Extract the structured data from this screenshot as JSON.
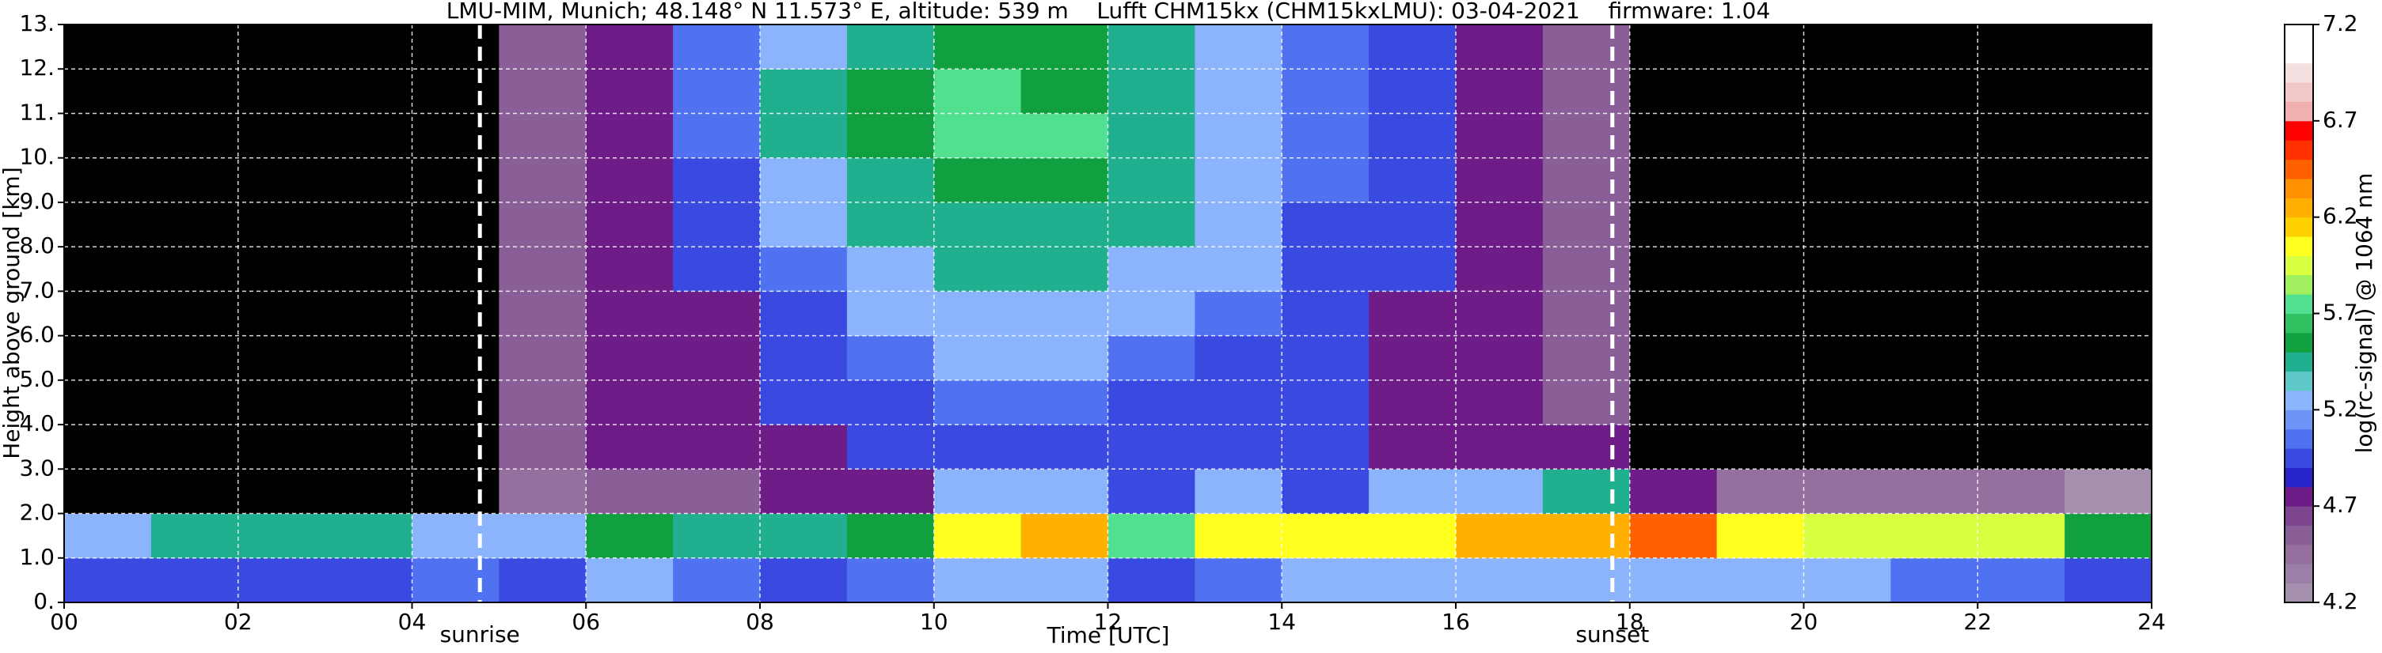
{
  "chart_data": {
    "type": "heatmap",
    "title": "LMU-MIM, Munich; 48.148° N 11.573° E, altitude: 539 m    Lufft CHM15kx (CHM15kxLMU): 03-04-2021    firmware: 1.04",
    "xlabel": "Time [UTC]",
    "ylabel": "Height above ground [km]",
    "colorbar_label": "log(rc-signal) @ 1064 nm",
    "xlim": [
      0,
      24
    ],
    "xticks": [
      {
        "value": 0,
        "label": "00"
      },
      {
        "value": 2,
        "label": "02"
      },
      {
        "value": 4,
        "label": "04"
      },
      {
        "value": 6,
        "label": "06"
      },
      {
        "value": 8,
        "label": "08"
      },
      {
        "value": 10,
        "label": "10"
      },
      {
        "value": 12,
        "label": "12"
      },
      {
        "value": 14,
        "label": "14"
      },
      {
        "value": 16,
        "label": "16"
      },
      {
        "value": 18,
        "label": "18"
      },
      {
        "value": 20,
        "label": "20"
      },
      {
        "value": 22,
        "label": "22"
      },
      {
        "value": 24,
        "label": "24"
      }
    ],
    "ylim": [
      0,
      13
    ],
    "yticks": [
      {
        "value": 0,
        "label": "0."
      },
      {
        "value": 1,
        "label": "1.0"
      },
      {
        "value": 2,
        "label": "2.0"
      },
      {
        "value": 3,
        "label": "3.0"
      },
      {
        "value": 4,
        "label": "4.0"
      },
      {
        "value": 5,
        "label": "5.0"
      },
      {
        "value": 6,
        "label": "6.0"
      },
      {
        "value": 7,
        "label": "7.0"
      },
      {
        "value": 8,
        "label": "8.0"
      },
      {
        "value": 9,
        "label": "9.0"
      },
      {
        "value": 10,
        "label": "10."
      },
      {
        "value": 11,
        "label": "11."
      },
      {
        "value": 12,
        "label": "12."
      },
      {
        "value": 13,
        "label": "13."
      }
    ],
    "grid": true,
    "clim": [
      4.2,
      7.2
    ],
    "cticks": [
      4.2,
      4.7,
      5.2,
      5.7,
      6.2,
      6.7,
      7.2
    ],
    "under_color": "#000000",
    "colors": [
      "#a58fae",
      "#9c7fa6",
      "#94709f",
      "#8a5e97",
      "#7e4690",
      "#6e1d88",
      "#2424c8",
      "#3a4ae0",
      "#5072f0",
      "#6e94f8",
      "#8cb4fc",
      "#60c8c8",
      "#20b090",
      "#10a040",
      "#30c060",
      "#50e090",
      "#a0f060",
      "#d8ff40",
      "#ffff20",
      "#ffd000",
      "#ffb000",
      "#ff9000",
      "#ff6000",
      "#ff3000",
      "#ff0000",
      "#f0b0b0",
      "#f0c8c8",
      "#f4e0e0",
      "#ffffff",
      "#ffffff"
    ],
    "vlines": [
      {
        "x": 4.78,
        "label": "sunrise"
      },
      {
        "x": 17.8,
        "label": "sunset"
      }
    ],
    "z": [
      [
        5.0,
        5.0,
        5.0,
        5.0,
        5.1,
        5.0,
        5.2,
        5.1,
        5.0,
        5.1,
        5.2,
        5.2,
        4.9,
        5.1,
        5.2,
        5.2,
        5.2,
        5.3,
        5.3,
        5.2,
        5.2,
        5.1,
        5.1,
        5.0
      ],
      [
        5.3,
        5.4,
        5.5,
        5.4,
        5.3,
        5.2,
        5.6,
        5.5,
        5.4,
        5.6,
        6.1,
        6.2,
        5.8,
        6.0,
        6.1,
        6.1,
        6.2,
        6.3,
        6.4,
        6.0,
        5.9,
        5.9,
        5.9,
        5.6
      ],
      [
        4.1,
        4.1,
        4.1,
        4.1,
        4.1,
        4.5,
        4.6,
        4.6,
        4.7,
        4.8,
        5.2,
        5.3,
        5.0,
        5.2,
        5.0,
        5.2,
        5.3,
        5.4,
        4.8,
        4.4,
        4.4,
        4.4,
        4.4,
        4.3
      ],
      [
        4.1,
        4.1,
        4.1,
        4.1,
        4.1,
        4.6,
        4.7,
        4.7,
        4.8,
        4.9,
        5.0,
        5.0,
        4.9,
        5.0,
        4.9,
        4.8,
        4.8,
        4.7,
        4.1,
        4.1,
        4.1,
        4.1,
        4.1,
        4.1
      ],
      [
        4.1,
        4.1,
        4.1,
        4.1,
        4.1,
        4.6,
        4.7,
        4.8,
        4.9,
        5.0,
        5.1,
        5.1,
        5.0,
        5.0,
        4.9,
        4.8,
        4.7,
        4.6,
        4.1,
        4.1,
        4.1,
        4.1,
        4.1,
        4.1
      ],
      [
        4.1,
        4.1,
        4.1,
        4.1,
        4.1,
        4.6,
        4.7,
        4.8,
        4.9,
        5.1,
        5.2,
        5.2,
        5.1,
        5.0,
        4.9,
        4.8,
        4.7,
        4.6,
        4.1,
        4.1,
        4.1,
        4.1,
        4.1,
        4.1
      ],
      [
        4.1,
        4.1,
        4.1,
        4.1,
        4.1,
        4.6,
        4.7,
        4.8,
        5.0,
        5.2,
        5.3,
        5.3,
        5.2,
        5.1,
        5.0,
        4.8,
        4.7,
        4.6,
        4.1,
        4.1,
        4.1,
        4.1,
        4.1,
        4.1
      ],
      [
        4.1,
        4.1,
        4.1,
        4.1,
        4.1,
        4.6,
        4.7,
        4.9,
        5.1,
        5.3,
        5.4,
        5.4,
        5.3,
        5.2,
        5.0,
        4.9,
        4.7,
        4.6,
        4.1,
        4.1,
        4.1,
        4.1,
        4.1,
        4.1
      ],
      [
        4.1,
        4.1,
        4.1,
        4.1,
        4.1,
        4.6,
        4.8,
        5.0,
        5.2,
        5.4,
        5.5,
        5.5,
        5.4,
        5.2,
        5.0,
        4.9,
        4.7,
        4.6,
        4.1,
        4.1,
        4.1,
        4.1,
        4.1,
        4.1
      ],
      [
        4.1,
        4.1,
        4.1,
        4.1,
        4.1,
        4.6,
        4.8,
        5.0,
        5.3,
        5.5,
        5.6,
        5.6,
        5.4,
        5.3,
        5.1,
        4.9,
        4.7,
        4.6,
        4.1,
        4.1,
        4.1,
        4.1,
        4.1,
        4.1
      ],
      [
        4.1,
        4.1,
        4.1,
        4.1,
        4.1,
        4.6,
        4.8,
        5.1,
        5.4,
        5.6,
        5.7,
        5.7,
        5.5,
        5.3,
        5.1,
        4.9,
        4.7,
        4.6,
        4.1,
        4.1,
        4.1,
        4.1,
        4.1,
        4.1
      ],
      [
        4.1,
        4.1,
        4.1,
        4.1,
        4.1,
        4.6,
        4.8,
        5.1,
        5.4,
        5.6,
        5.7,
        5.6,
        5.5,
        5.3,
        5.1,
        4.9,
        4.7,
        4.6,
        4.1,
        4.1,
        4.1,
        4.1,
        4.1,
        4.1
      ],
      [
        4.1,
        4.1,
        4.1,
        4.1,
        4.1,
        4.6,
        4.8,
        5.1,
        5.3,
        5.5,
        5.6,
        5.6,
        5.4,
        5.3,
        5.1,
        4.9,
        4.7,
        4.6,
        4.1,
        4.1,
        4.1,
        4.1,
        4.1,
        4.1
      ]
    ]
  }
}
